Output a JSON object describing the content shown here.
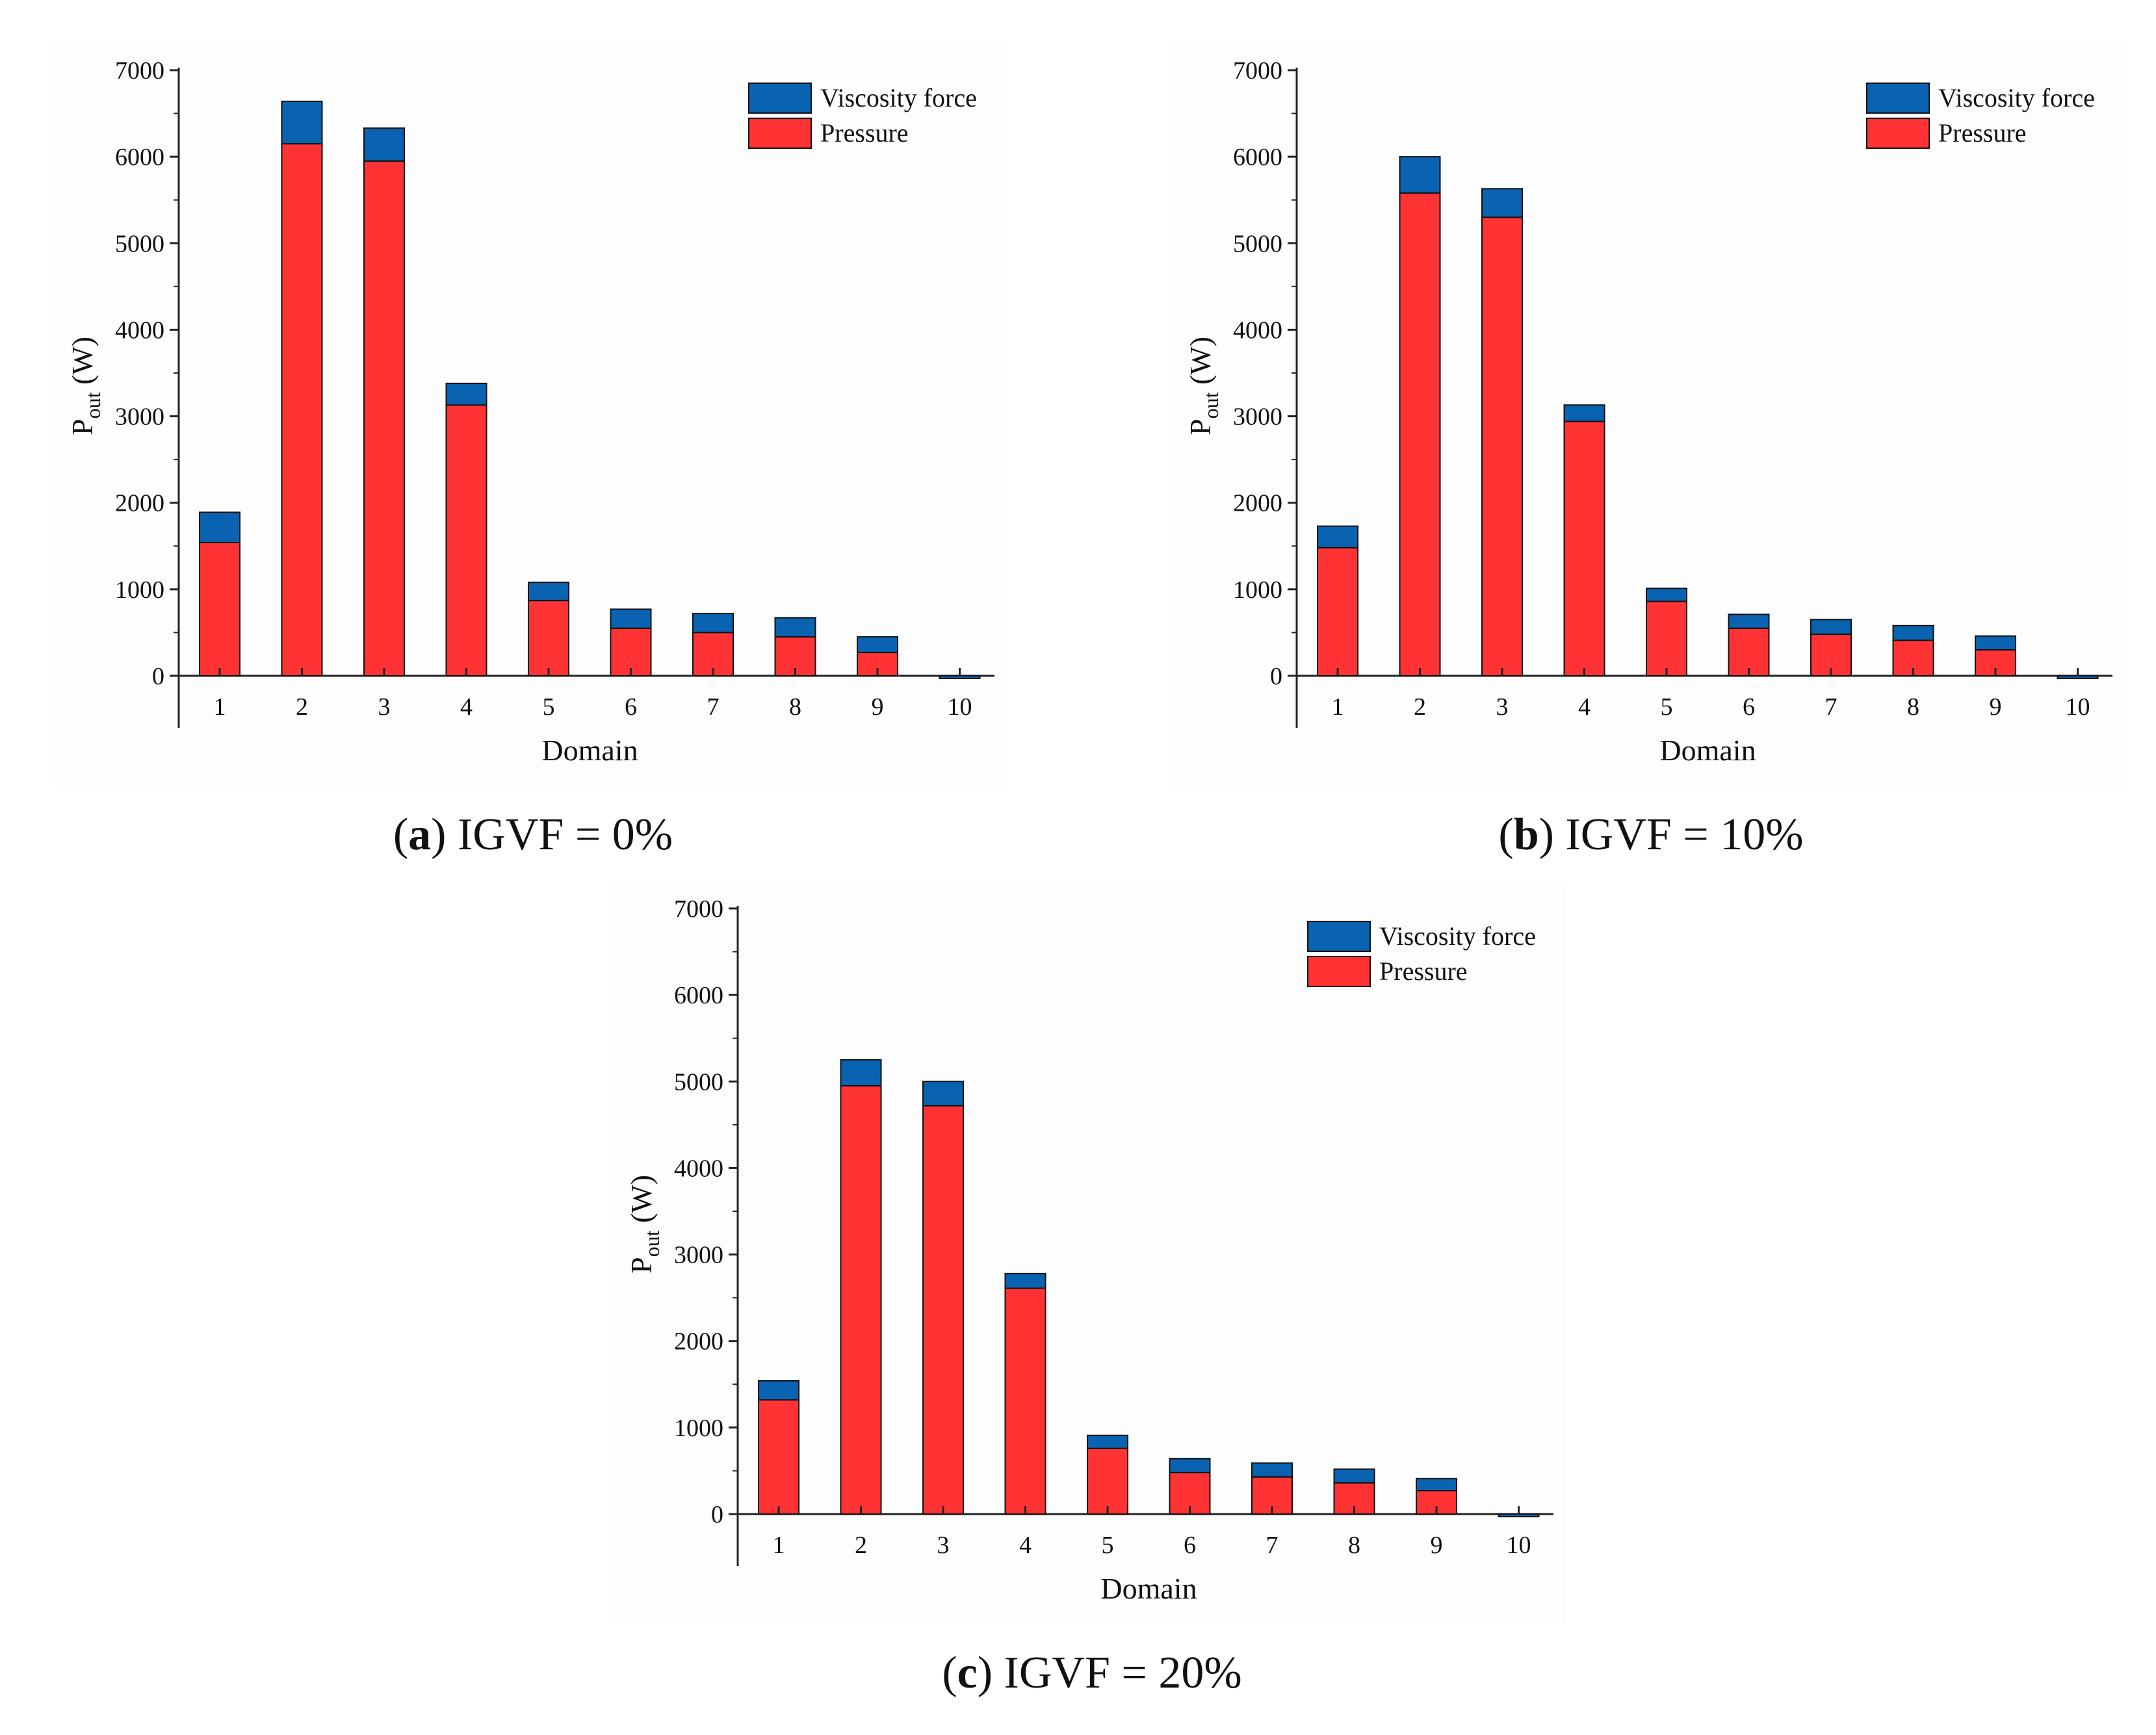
{
  "figure": {
    "panels": [
      {
        "letter": "a",
        "caption_text": "IGVF = 0%"
      },
      {
        "letter": "b",
        "caption_text": "IGVF = 10%"
      },
      {
        "letter": "c",
        "caption_text": "IGVF = 20%"
      }
    ]
  },
  "colors": {
    "pressure": "#ff3333",
    "viscosity": "#0a63b1",
    "axis": "#222222"
  },
  "chart_data": [
    {
      "type": "bar",
      "stacked": true,
      "title": "IGVF = 0%",
      "xlabel": "Domain",
      "ylabel_main": "P",
      "ylabel_sub": "out",
      "ylabel_unit": "(W)",
      "ylim": [
        -500,
        7000
      ],
      "yticks": [
        0,
        1000,
        2000,
        3000,
        4000,
        5000,
        6000,
        7000
      ],
      "categories": [
        "1",
        "2",
        "3",
        "4",
        "5",
        "6",
        "7",
        "8",
        "9",
        "10"
      ],
      "legend_position": "top-right",
      "series": [
        {
          "name": "Pressure",
          "values": [
            1540,
            6150,
            5950,
            3130,
            870,
            550,
            500,
            450,
            270,
            0
          ]
        },
        {
          "name": "Viscosity force",
          "values": [
            350,
            490,
            380,
            250,
            210,
            220,
            220,
            220,
            180,
            -30
          ]
        }
      ]
    },
    {
      "type": "bar",
      "stacked": true,
      "title": "IGVF = 10%",
      "xlabel": "Domain",
      "ylabel_main": "P",
      "ylabel_sub": "out",
      "ylabel_unit": "(W)",
      "ylim": [
        -500,
        7000
      ],
      "yticks": [
        0,
        1000,
        2000,
        3000,
        4000,
        5000,
        6000,
        7000
      ],
      "categories": [
        "1",
        "2",
        "3",
        "4",
        "5",
        "6",
        "7",
        "8",
        "9",
        "10"
      ],
      "legend_position": "top-right",
      "series": [
        {
          "name": "Pressure",
          "values": [
            1480,
            5580,
            5300,
            2940,
            860,
            550,
            480,
            410,
            300,
            0
          ]
        },
        {
          "name": "Viscosity force",
          "values": [
            250,
            420,
            330,
            190,
            150,
            160,
            170,
            170,
            160,
            -30
          ]
        }
      ]
    },
    {
      "type": "bar",
      "stacked": true,
      "title": "IGVF = 20%",
      "xlabel": "Domain",
      "ylabel_main": "P",
      "ylabel_sub": "out",
      "ylabel_unit": "(W)",
      "ylim": [
        -500,
        7000
      ],
      "yticks": [
        0,
        1000,
        2000,
        3000,
        4000,
        5000,
        6000,
        7000
      ],
      "categories": [
        "1",
        "2",
        "3",
        "4",
        "5",
        "6",
        "7",
        "8",
        "9",
        "10"
      ],
      "legend_position": "top-right",
      "series": [
        {
          "name": "Pressure",
          "values": [
            1320,
            4950,
            4720,
            2610,
            760,
            480,
            430,
            360,
            270,
            0
          ]
        },
        {
          "name": "Viscosity force",
          "values": [
            220,
            300,
            280,
            170,
            150,
            160,
            160,
            160,
            140,
            -30
          ]
        }
      ]
    }
  ]
}
